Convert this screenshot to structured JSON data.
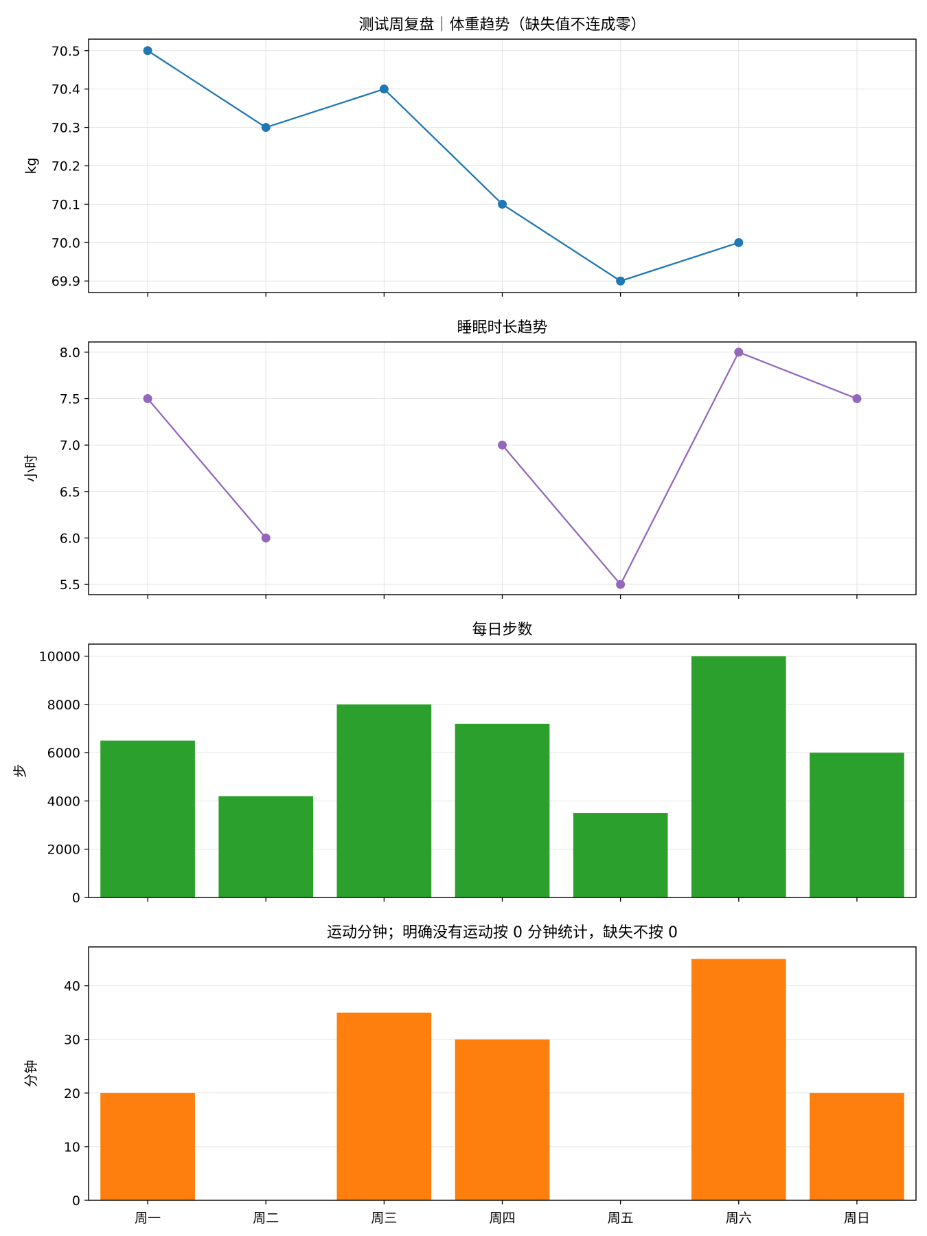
{
  "chart_data": [
    {
      "type": "line",
      "title": "测试周复盘｜体重趋势（缺失值不连成零）",
      "xlabel": "",
      "ylabel": "kg",
      "categories": [
        "周一",
        "周二",
        "周三",
        "周四",
        "周五",
        "周六",
        "周日"
      ],
      "series": [
        {
          "values": [
            70.5,
            70.3,
            70.4,
            70.1,
            69.9,
            70.0,
            null
          ]
        }
      ],
      "ylim": [
        69.87,
        70.53
      ],
      "yticks": [
        69.9,
        70.0,
        70.1,
        70.2,
        70.3,
        70.4,
        70.5
      ],
      "ytick_labels": [
        "69.9",
        "70.0",
        "70.1",
        "70.2",
        "70.3",
        "70.4",
        "70.5"
      ],
      "color": "#1f77b4",
      "markers": true,
      "grid": true,
      "show_xticklabels": false
    },
    {
      "type": "line",
      "title": "睡眠时长趋势",
      "xlabel": "",
      "ylabel": "小时",
      "categories": [
        "周一",
        "周二",
        "周三",
        "周四",
        "周五",
        "周六",
        "周日"
      ],
      "series": [
        {
          "values": [
            7.5,
            6.0,
            null,
            7.0,
            5.5,
            8.0,
            7.5
          ]
        }
      ],
      "ylim": [
        5.39,
        8.11
      ],
      "yticks": [
        5.5,
        6.0,
        6.5,
        7.0,
        7.5,
        8.0
      ],
      "ytick_labels": [
        "5.5",
        "6.0",
        "6.5",
        "7.0",
        "7.5",
        "8.0"
      ],
      "color": "#9467bd",
      "markers": true,
      "grid": true,
      "show_xticklabels": false
    },
    {
      "type": "bar",
      "title": "每日步数",
      "xlabel": "",
      "ylabel": "步",
      "categories": [
        "周一",
        "周二",
        "周三",
        "周四",
        "周五",
        "周六",
        "周日"
      ],
      "series": [
        {
          "values": [
            6500,
            4200,
            8000,
            7200,
            3500,
            10000,
            6000
          ]
        }
      ],
      "ylim": [
        0,
        10500
      ],
      "yticks": [
        0,
        2000,
        4000,
        6000,
        8000,
        10000
      ],
      "ytick_labels": [
        "0",
        "2000",
        "4000",
        "6000",
        "8000",
        "10000"
      ],
      "color": "#2ca02c",
      "grid": true,
      "show_xticklabels": false
    },
    {
      "type": "bar",
      "title": "运动分钟；明确没有运动按 0 分钟统计，缺失不按 0",
      "xlabel": "",
      "ylabel": "分钟",
      "categories": [
        "周一",
        "周二",
        "周三",
        "周四",
        "周五",
        "周六",
        "周日"
      ],
      "series": [
        {
          "values": [
            20,
            0,
            35,
            30,
            0,
            45,
            20
          ]
        }
      ],
      "ylim": [
        0,
        47.25
      ],
      "yticks": [
        0,
        10,
        20,
        30,
        40
      ],
      "ytick_labels": [
        "0",
        "10",
        "20",
        "30",
        "40"
      ],
      "color": "#ff7f0e",
      "grid": true,
      "show_xticklabels": true
    }
  ]
}
